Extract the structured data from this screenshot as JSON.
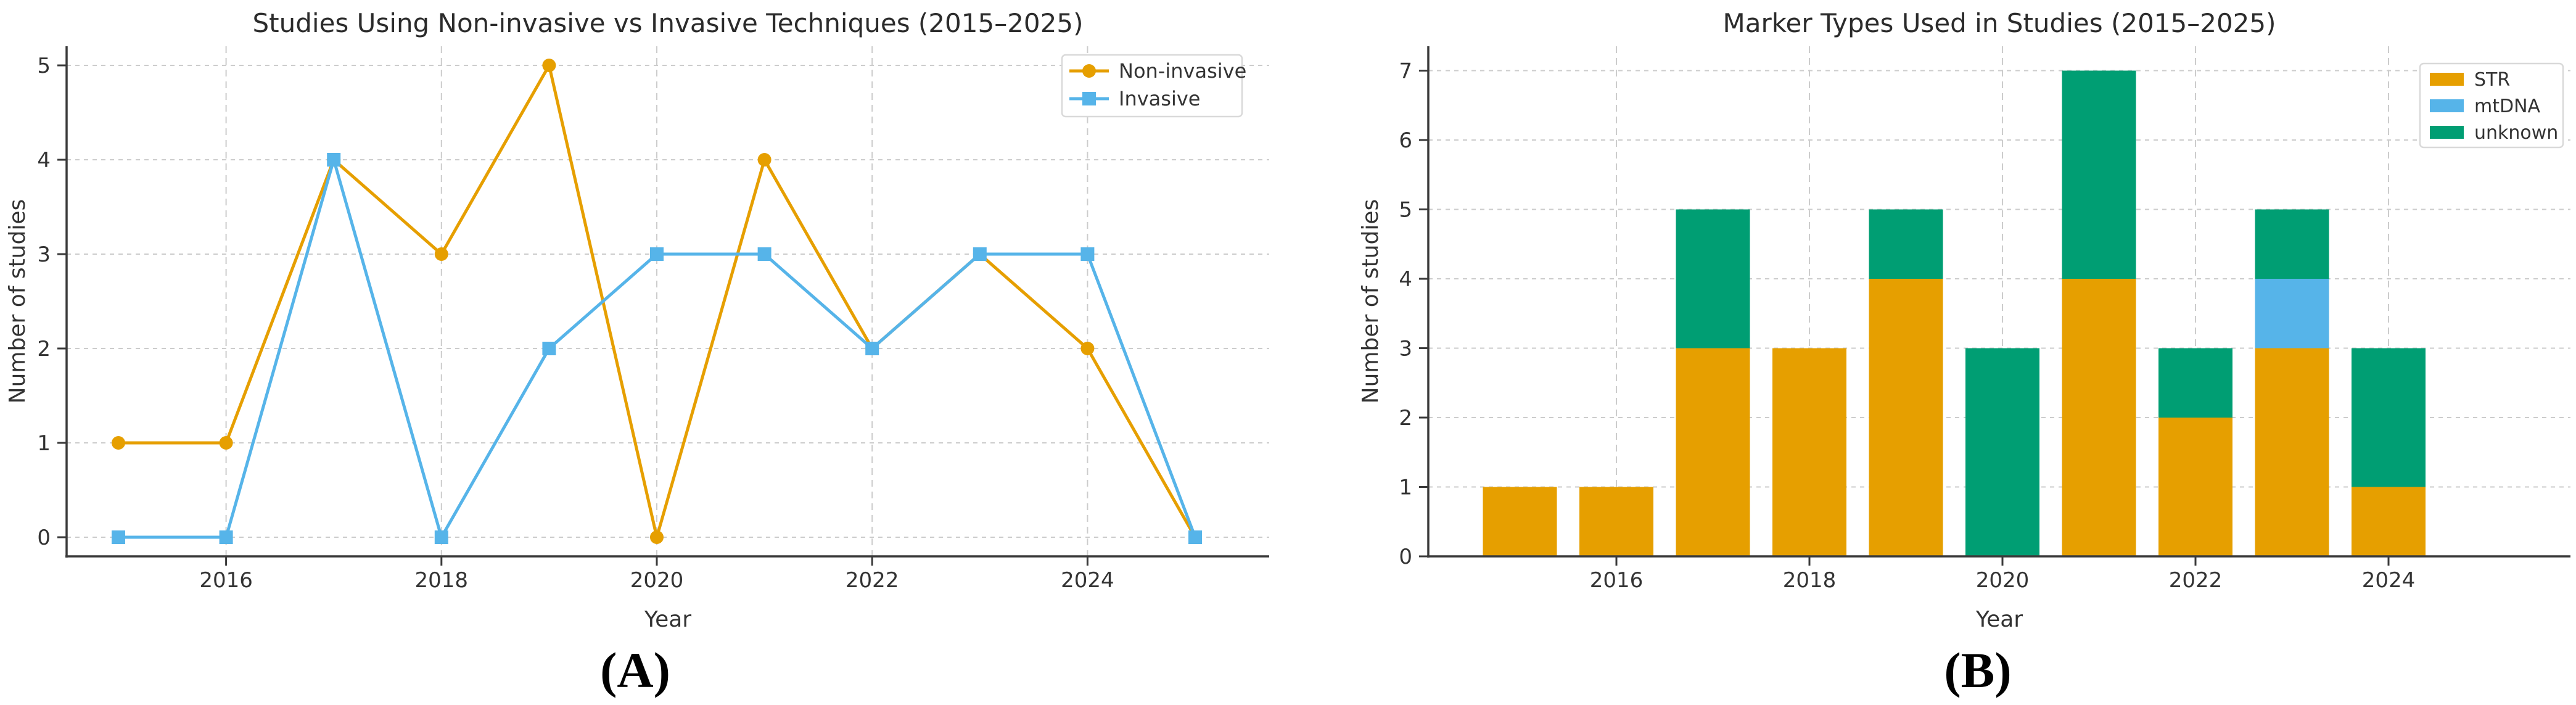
{
  "figure": {
    "panel_a_label": "(A)",
    "panel_b_label": "(B)",
    "background": "#ffffff"
  },
  "style": {
    "text_color": "#333333",
    "title_color": "#2b2b2b",
    "axis_color": "#3a3a3a",
    "grid_color": "#cccccc",
    "legend_border": "#d9d9d9",
    "legend_background": "#ffffff",
    "series_orange": "#E69F00",
    "series_blue": "#56B4E9",
    "series_green": "#009E73"
  },
  "chart_data": [
    {
      "panel": "A",
      "type": "line",
      "title": "Studies Using Non-invasive vs Invasive Techniques (2015–2025)",
      "xlabel": "Year",
      "ylabel": "Number of studies",
      "x": [
        2015,
        2016,
        2017,
        2018,
        2019,
        2020,
        2021,
        2022,
        2023,
        2024,
        2025
      ],
      "xticks": [
        2016,
        2018,
        2020,
        2022,
        2024
      ],
      "yticks": [
        0,
        1,
        2,
        3,
        4,
        5
      ],
      "ylim": [
        0,
        5
      ],
      "grid": true,
      "legend_position": "upper right",
      "series": [
        {
          "name": "Non-invasive",
          "color": "#E69F00",
          "marker": "circle",
          "values": [
            1,
            1,
            4,
            3,
            5,
            0,
            4,
            2,
            3,
            2,
            0
          ]
        },
        {
          "name": "Invasive",
          "color": "#56B4E9",
          "marker": "square",
          "values": [
            0,
            0,
            4,
            0,
            2,
            3,
            3,
            2,
            3,
            3,
            0
          ]
        }
      ]
    },
    {
      "panel": "B",
      "type": "bar",
      "stacked": true,
      "title": "Marker Types Used in Studies (2015–2025)",
      "xlabel": "Year",
      "ylabel": "Number of studies",
      "categories": [
        2015,
        2016,
        2017,
        2018,
        2019,
        2020,
        2021,
        2022,
        2023,
        2024
      ],
      "xticks": [
        2016,
        2018,
        2020,
        2022,
        2024
      ],
      "yticks": [
        0,
        1,
        2,
        3,
        4,
        5,
        6,
        7
      ],
      "ylim": [
        0,
        7
      ],
      "grid": true,
      "legend_position": "upper right",
      "series": [
        {
          "name": "STR",
          "color": "#E69F00",
          "values": [
            1,
            1,
            3,
            3,
            4,
            0,
            4,
            2,
            3,
            1
          ]
        },
        {
          "name": "mtDNA",
          "color": "#56B4E9",
          "values": [
            0,
            0,
            0,
            0,
            0,
            0,
            0,
            0,
            1,
            0
          ]
        },
        {
          "name": "unknown",
          "color": "#009E73",
          "values": [
            0,
            0,
            2,
            0,
            1,
            3,
            3,
            1,
            1,
            2
          ]
        }
      ]
    }
  ]
}
